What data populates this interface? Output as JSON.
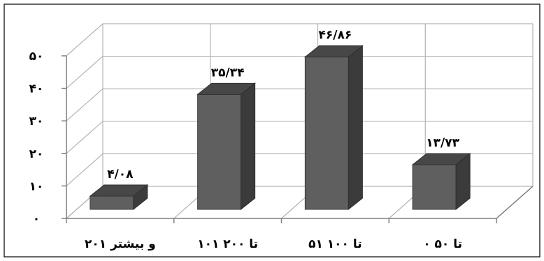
{
  "chart_data": {
    "type": "bar",
    "categories": [
      "۲۰۱ و بیشتر",
      "۱۰۱ تا ۲۰۰",
      "۵۱ تا ۱۰۰",
      "۰ تا ۵۰"
    ],
    "values": [
      4.08,
      35.34,
      46.86,
      13.73
    ],
    "data_labels": [
      "۴/۰۸",
      "۳۵/۳۴",
      "۴۶/۸۶",
      "۱۳/۷۳"
    ],
    "yticks": [
      0,
      10,
      20,
      30,
      40,
      50
    ],
    "ytick_labels": [
      "۰",
      "۱۰",
      "۲۰",
      "۳۰",
      "۴۰",
      "۵۰"
    ],
    "ylim": [
      0,
      50
    ],
    "title": "",
    "xlabel": "",
    "ylabel": "",
    "grid": true,
    "legend": "none",
    "bar_color": "#5f5f5f",
    "bar_top_color": "#474747",
    "bar_side_color": "#3b3b3b"
  }
}
